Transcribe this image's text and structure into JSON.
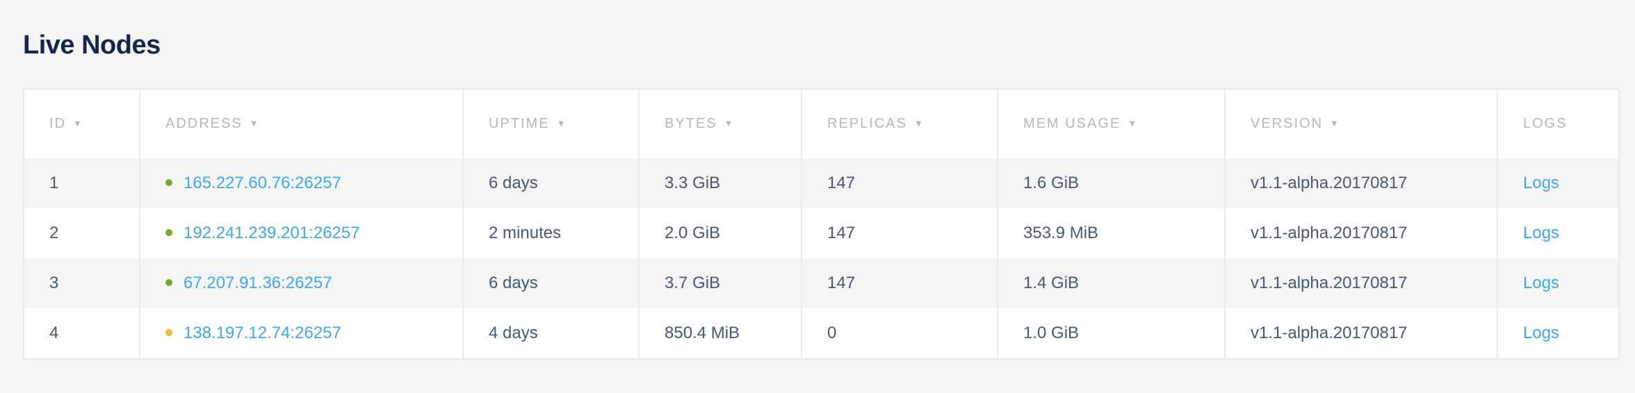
{
  "title": "Live Nodes",
  "columns": [
    {
      "label": "ID",
      "sortable": true
    },
    {
      "label": "ADDRESS",
      "sortable": true
    },
    {
      "label": "UPTIME",
      "sortable": true
    },
    {
      "label": "BYTES",
      "sortable": true
    },
    {
      "label": "REPLICAS",
      "sortable": true
    },
    {
      "label": "MEM USAGE",
      "sortable": true
    },
    {
      "label": "VERSION",
      "sortable": true
    },
    {
      "label": "LOGS",
      "sortable": false
    }
  ],
  "sort_icon": "▼",
  "status_colors": {
    "healthy": "#6fac2a",
    "suspect": "#f5b82e"
  },
  "rows": [
    {
      "id": "1",
      "status": "healthy",
      "address": "165.227.60.76:26257",
      "uptime": "6 days",
      "bytes": "3.3 GiB",
      "replicas": "147",
      "mem_usage": "1.6 GiB",
      "version": "v1.1-alpha.20170817",
      "logs": "Logs"
    },
    {
      "id": "2",
      "status": "healthy",
      "address": "192.241.239.201:26257",
      "uptime": "2 minutes",
      "bytes": "2.0 GiB",
      "replicas": "147",
      "mem_usage": "353.9 MiB",
      "version": "v1.1-alpha.20170817",
      "logs": "Logs"
    },
    {
      "id": "3",
      "status": "healthy",
      "address": "67.207.91.36:26257",
      "uptime": "6 days",
      "bytes": "3.7 GiB",
      "replicas": "147",
      "mem_usage": "1.4 GiB",
      "version": "v1.1-alpha.20170817",
      "logs": "Logs"
    },
    {
      "id": "4",
      "status": "suspect",
      "address": "138.197.12.74:26257",
      "uptime": "4 days",
      "bytes": "850.4 MiB",
      "replicas": "0",
      "mem_usage": "1.0 GiB",
      "version": "v1.1-alpha.20170817",
      "logs": "Logs"
    }
  ]
}
